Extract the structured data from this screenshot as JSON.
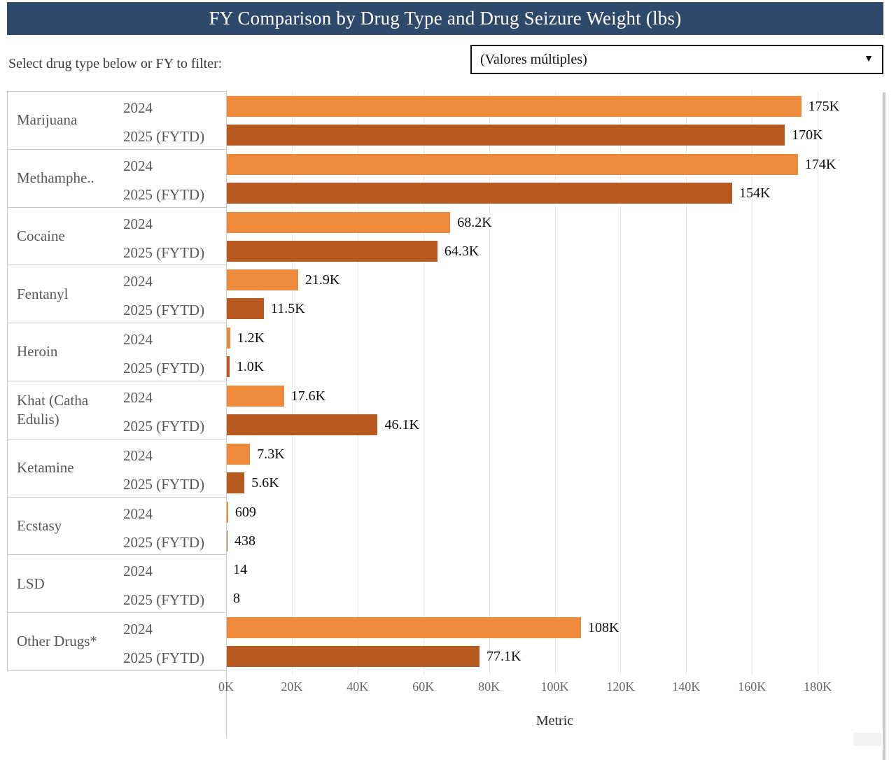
{
  "title": "FY Comparison by Drug Type and Drug Seizure Weight (lbs)",
  "filter": {
    "label": "Select drug type below or FY to filter:",
    "dropdown_value": "(Valores múltiples)",
    "dropdown_icon": "▼"
  },
  "chart_data": {
    "type": "bar",
    "orientation": "horizontal",
    "title": "FY Comparison by Drug Type and Drug Seizure Weight (lbs)",
    "xlabel": "Metric",
    "x_max": 200000,
    "x_tick_interval": 20000,
    "x_tick_labels": [
      "0K",
      "20K",
      "40K",
      "60K",
      "80K",
      "100K",
      "120K",
      "140K",
      "160K",
      "180K"
    ],
    "grid": true,
    "legend_position": "none",
    "series_names": [
      "2024",
      "2025 (FYTD)"
    ],
    "series_colors": [
      "#ED8A3C",
      "#B85A20"
    ],
    "rows": [
      {
        "drug": "Marijuana",
        "bars": [
          {
            "year": "2024",
            "value": 175000,
            "label": "175K"
          },
          {
            "year": "2025 (FYTD)",
            "value": 170000,
            "label": "170K"
          }
        ]
      },
      {
        "drug": "Methamphe..",
        "bars": [
          {
            "year": "2024",
            "value": 174000,
            "label": "174K"
          },
          {
            "year": "2025 (FYTD)",
            "value": 154000,
            "label": "154K"
          }
        ]
      },
      {
        "drug": "Cocaine",
        "bars": [
          {
            "year": "2024",
            "value": 68200,
            "label": "68.2K"
          },
          {
            "year": "2025 (FYTD)",
            "value": 64300,
            "label": "64.3K"
          }
        ]
      },
      {
        "drug": "Fentanyl",
        "bars": [
          {
            "year": "2024",
            "value": 21900,
            "label": "21.9K"
          },
          {
            "year": "2025 (FYTD)",
            "value": 11500,
            "label": "11.5K"
          }
        ]
      },
      {
        "drug": "Heroin",
        "bars": [
          {
            "year": "2024",
            "value": 1200,
            "label": "1.2K"
          },
          {
            "year": "2025 (FYTD)",
            "value": 1000,
            "label": "1.0K"
          }
        ]
      },
      {
        "drug": "Khat (Catha Edulis)",
        "bars": [
          {
            "year": "2024",
            "value": 17600,
            "label": "17.6K"
          },
          {
            "year": "2025 (FYTD)",
            "value": 46100,
            "label": "46.1K"
          }
        ]
      },
      {
        "drug": "Ketamine",
        "bars": [
          {
            "year": "2024",
            "value": 7300,
            "label": "7.3K"
          },
          {
            "year": "2025 (FYTD)",
            "value": 5600,
            "label": "5.6K"
          }
        ]
      },
      {
        "drug": "Ecstasy",
        "bars": [
          {
            "year": "2024",
            "value": 609,
            "label": "609"
          },
          {
            "year": "2025 (FYTD)",
            "value": 438,
            "label": "438"
          }
        ]
      },
      {
        "drug": "LSD",
        "bars": [
          {
            "year": "2024",
            "value": 14,
            "label": "14"
          },
          {
            "year": "2025 (FYTD)",
            "value": 8,
            "label": "8"
          }
        ]
      },
      {
        "drug": "Other Drugs*",
        "bars": [
          {
            "year": "2024",
            "value": 108000,
            "label": "108K"
          },
          {
            "year": "2025 (FYTD)",
            "value": 77100,
            "label": "77.1K"
          }
        ]
      }
    ]
  }
}
